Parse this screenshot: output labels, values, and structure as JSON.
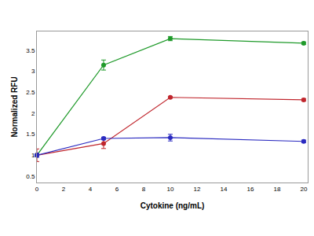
{
  "chart_data": {
    "type": "line",
    "x_label": "Cytokine (ng/mL)",
    "y_label": "Normalized RFU",
    "x": [
      0,
      5,
      10,
      20
    ],
    "series": [
      {
        "color": "#1f9a2a",
        "values": [
          1.0,
          3.15,
          3.78,
          3.67
        ],
        "errors": [
          0.03,
          0.12,
          0.05,
          0.03
        ],
        "marker": "circle"
      },
      {
        "color": "#c0262d",
        "values": [
          1.0,
          1.28,
          2.38,
          2.32
        ],
        "errors": [
          0.15,
          0.12,
          0.02,
          0.03
        ],
        "marker": "circle"
      },
      {
        "color": "#2a2ac0",
        "values": [
          1.0,
          1.4,
          1.42,
          1.33
        ],
        "errors": [
          0.05,
          0.03,
          0.08,
          0.03
        ],
        "marker": "circle"
      }
    ],
    "xlim": [
      0,
      20.3
    ],
    "xticks": [
      0,
      2,
      4,
      6,
      8,
      10,
      12,
      14,
      16,
      18,
      20
    ],
    "ylim": [
      0.35,
      3.95
    ],
    "yticks": [
      0.5,
      1,
      1.5,
      2,
      2.5,
      3,
      3.5
    ],
    "grid": false
  }
}
